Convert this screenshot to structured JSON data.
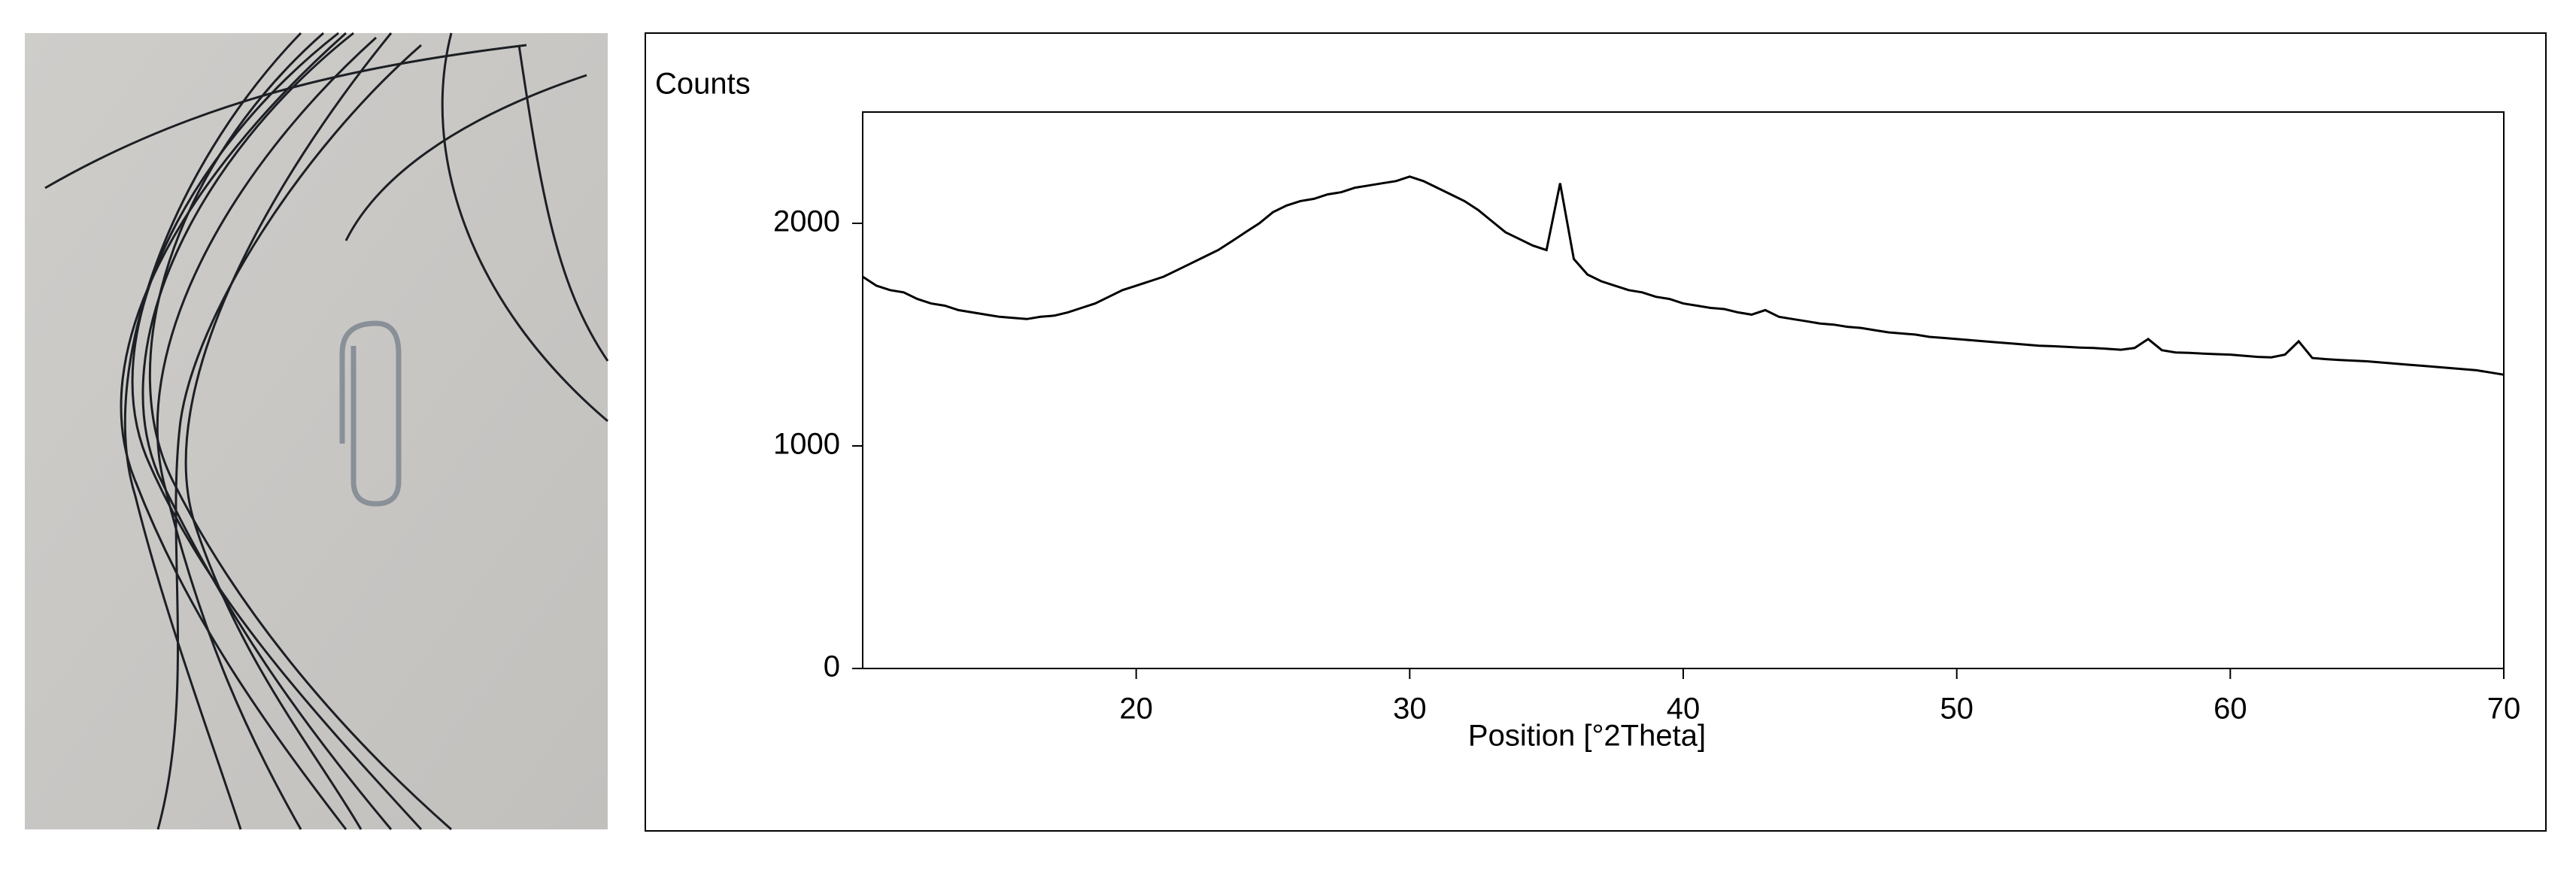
{
  "chart_data": {
    "type": "line",
    "ylabel": "Counts",
    "xlabel": "Position [°2Theta]",
    "xlim": [
      10,
      70
    ],
    "xticks": [
      20,
      30,
      40,
      50,
      60,
      70
    ],
    "ylim": [
      0,
      2500
    ],
    "yticks": [
      0,
      1000,
      2000
    ],
    "color": "#000000",
    "x": [
      10,
      10.5,
      11,
      11.5,
      12,
      12.5,
      13,
      13.5,
      14,
      14.5,
      15,
      15.5,
      16,
      16.5,
      17,
      17.5,
      18,
      18.5,
      19,
      19.5,
      20,
      20.5,
      21,
      21.5,
      22,
      22.5,
      23,
      23.5,
      24,
      24.5,
      25,
      25.5,
      26,
      26.5,
      27,
      27.5,
      28,
      28.5,
      29,
      29.5,
      30,
      30.5,
      31,
      31.5,
      32,
      32.5,
      33,
      33.5,
      34,
      34.5,
      35,
      35.5,
      36,
      36.5,
      37,
      37.5,
      38,
      38.5,
      39,
      39.5,
      40,
      40.5,
      41,
      41.5,
      42,
      42.5,
      43,
      43.5,
      44,
      44.5,
      45,
      45.5,
      46,
      46.5,
      47,
      47.5,
      48,
      48.5,
      49,
      49.5,
      50,
      50.5,
      51,
      51.5,
      52,
      52.5,
      53,
      53.5,
      54,
      54.5,
      55,
      55.5,
      56,
      56.5,
      57,
      57.5,
      58,
      58.5,
      59,
      59.5,
      60,
      60.5,
      61,
      61.5,
      62,
      62.5,
      63,
      63.5,
      64,
      64.5,
      65,
      65.5,
      66,
      66.5,
      67,
      67.5,
      68,
      68.5,
      69,
      69.5,
      70
    ],
    "values": [
      1760,
      1720,
      1700,
      1690,
      1660,
      1640,
      1630,
      1610,
      1600,
      1590,
      1580,
      1575,
      1570,
      1580,
      1585,
      1600,
      1620,
      1640,
      1670,
      1700,
      1720,
      1740,
      1760,
      1790,
      1820,
      1850,
      1880,
      1920,
      1960,
      2000,
      2050,
      2080,
      2100,
      2110,
      2130,
      2140,
      2160,
      2170,
      2180,
      2190,
      2210,
      2190,
      2160,
      2130,
      2100,
      2060,
      2010,
      1960,
      1930,
      1900,
      1880,
      2180,
      1840,
      1770,
      1740,
      1720,
      1700,
      1690,
      1670,
      1660,
      1640,
      1630,
      1620,
      1615,
      1600,
      1590,
      1610,
      1580,
      1570,
      1560,
      1550,
      1545,
      1535,
      1530,
      1520,
      1510,
      1505,
      1500,
      1490,
      1485,
      1480,
      1475,
      1470,
      1465,
      1460,
      1455,
      1450,
      1448,
      1445,
      1442,
      1440,
      1436,
      1432,
      1440,
      1480,
      1430,
      1420,
      1418,
      1415,
      1412,
      1410,
      1405,
      1400,
      1398,
      1410,
      1470,
      1395,
      1390,
      1386,
      1383,
      1380,
      1375,
      1370,
      1365,
      1360,
      1355,
      1350,
      1345,
      1340,
      1330,
      1320
    ]
  }
}
